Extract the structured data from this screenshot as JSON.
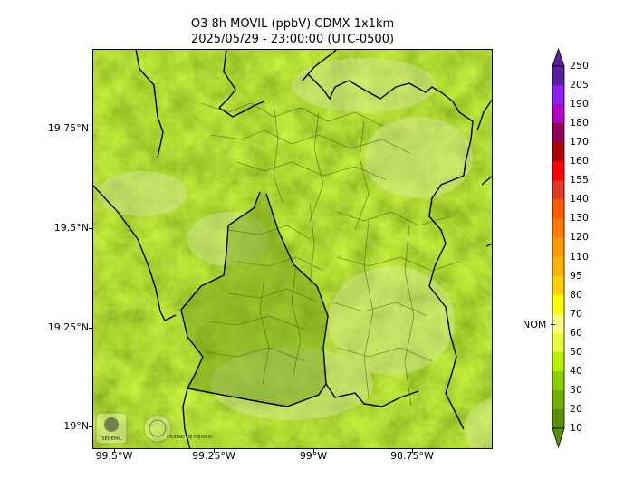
{
  "title": {
    "line1": "O3 8h MOVIL (ppbV) CDMX 1x1km",
    "line2": "2025/05/29 - 23:00:00 (UTC-0500)"
  },
  "axes": {
    "y_ticks": [
      "19.75°N",
      "19.5°N",
      "19.25°N",
      "19°N"
    ],
    "x_ticks": [
      "99.5°W",
      "99.25°W",
      "99°W",
      "98.75°W"
    ]
  },
  "colorbar": {
    "labels": [
      "250",
      "205",
      "190",
      "180",
      "170",
      "160",
      "155",
      "140",
      "130",
      "120",
      "110",
      "95",
      "80",
      "70",
      "60",
      "50",
      "40",
      "30",
      "20",
      "10"
    ],
    "colors": [
      "#5a1f9e",
      "#8a1ff0",
      "#b000c0",
      "#90005a",
      "#b00000",
      "#ff0000",
      "#e03a20",
      "#ff5a00",
      "#ff7a00",
      "#ff9a00",
      "#ffb200",
      "#ffd000",
      "#ffff00",
      "#ffff80",
      "#e8ff40",
      "#b8f000",
      "#88d000",
      "#70b000",
      "#5a9000"
    ],
    "nom_label": "NOM",
    "nom_value": 65
  },
  "logos": {
    "left": "SEDEMA",
    "right": "CIUDAD DE MÉXICO"
  }
}
